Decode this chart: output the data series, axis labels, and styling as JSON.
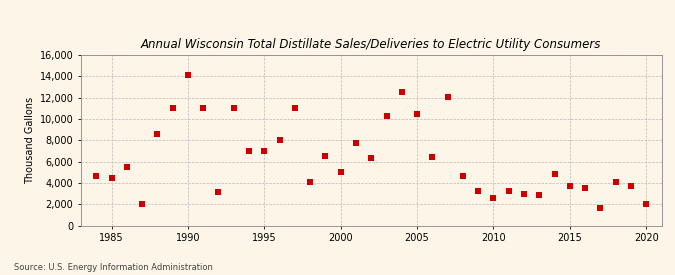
{
  "title": "Annual Wisconsin Total Distillate Sales/Deliveries to Electric Utility Consumers",
  "ylabel": "Thousand Gallons",
  "source": "Source: U.S. Energy Information Administration",
  "background_color": "#fdf6e8",
  "marker_color": "#cc0000",
  "xlim": [
    1983,
    2021
  ],
  "ylim": [
    0,
    16000
  ],
  "yticks": [
    0,
    2000,
    4000,
    6000,
    8000,
    10000,
    12000,
    14000,
    16000
  ],
  "xticks": [
    1985,
    1990,
    1995,
    2000,
    2005,
    2010,
    2015,
    2020
  ],
  "years": [
    1984,
    1985,
    1986,
    1987,
    1988,
    1989,
    1990,
    1991,
    1992,
    1993,
    1994,
    1995,
    1996,
    1997,
    1998,
    1999,
    2000,
    2001,
    2002,
    2003,
    2004,
    2005,
    2006,
    2007,
    2008,
    2009,
    2010,
    2011,
    2012,
    2013,
    2014,
    2015,
    2016,
    2017,
    2018,
    2019,
    2020
  ],
  "values": [
    4600,
    4500,
    5500,
    2000,
    8600,
    11000,
    14100,
    11000,
    3100,
    11000,
    7000,
    7000,
    8000,
    11000,
    4100,
    6500,
    5000,
    7700,
    6300,
    10300,
    12500,
    10500,
    6400,
    12100,
    4600,
    3200,
    2600,
    3200,
    3000,
    2900,
    4800,
    3700,
    3500,
    1600,
    4100,
    3700,
    2000
  ]
}
